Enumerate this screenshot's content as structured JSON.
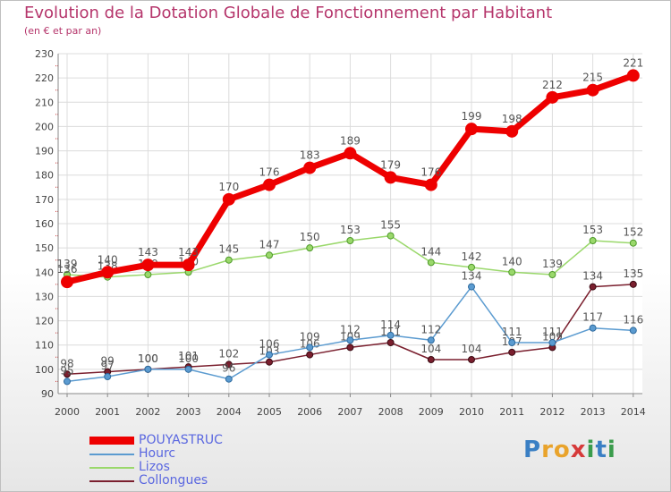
{
  "header": {
    "title": "Evolution de la Dotation Globale de Fonctionnement par Habitant",
    "subtitle": "(en € et par an)"
  },
  "logo": {
    "text": "Proxiti",
    "colors": [
      "#3a7fc4",
      "#e9a32b",
      "#d63a3a",
      "#3a9c4c"
    ]
  },
  "chart_data": {
    "type": "line",
    "title": "Evolution de la Dotation Globale de Fonctionnement par Habitant",
    "subtitle": "(en € et par an)",
    "xlabel": "",
    "ylabel": "",
    "x": [
      "2000",
      "2001",
      "2002",
      "2003",
      "2004",
      "2005",
      "2006",
      "2007",
      "2008",
      "2009",
      "2010",
      "2011",
      "2012",
      "2013",
      "2014"
    ],
    "ylim": [
      90,
      230
    ],
    "yticks": [
      "90",
      "100",
      "110",
      "120",
      "130",
      "140",
      "150",
      "160",
      "170",
      "180",
      "190",
      "200",
      "210",
      "220",
      "230"
    ],
    "grid": true,
    "legend_position": "bottom-left",
    "series": [
      {
        "name": "POUYASTRUC",
        "color": "#ee0000",
        "values": [
          136,
          140,
          143,
          143,
          170,
          176,
          183,
          189,
          179,
          176,
          199,
          198,
          212,
          215,
          221
        ]
      },
      {
        "name": "Hourc",
        "color": "#5b9bd0",
        "values": [
          95,
          97,
          100,
          100,
          96,
          106,
          109,
          112,
          114,
          112,
          134,
          111,
          111,
          117,
          116
        ]
      },
      {
        "name": "Lizos",
        "color": "#9ad86b",
        "values": [
          139,
          138,
          139,
          140,
          145,
          147,
          150,
          153,
          155,
          144,
          142,
          140,
          139,
          153,
          152
        ]
      },
      {
        "name": "Collongues",
        "color": "#7a1f2e",
        "values": [
          98,
          99,
          100,
          101,
          102,
          103,
          106,
          109,
          111,
          104,
          104,
          107,
          109,
          134,
          135
        ]
      }
    ]
  }
}
